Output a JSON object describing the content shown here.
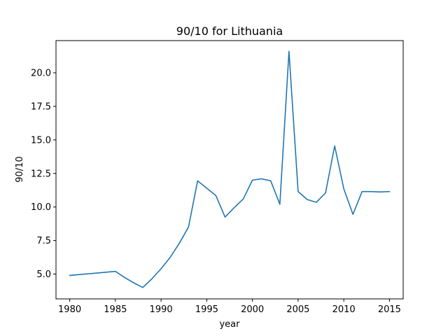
{
  "chart_data": {
    "type": "line",
    "title": "90/10 for Lithuania",
    "xlabel": "year",
    "ylabel": "90/10",
    "xlim": [
      1978.5,
      2016.5
    ],
    "ylim": [
      3.15,
      22.4
    ],
    "xticks": [
      1980,
      1985,
      1990,
      1995,
      2000,
      2005,
      2010,
      2015
    ],
    "xtick_labels": [
      "1980",
      "1985",
      "1990",
      "1995",
      "2000",
      "2005",
      "2010",
      "2015"
    ],
    "yticks": [
      5.0,
      7.5,
      10.0,
      12.5,
      15.0,
      17.5,
      20.0
    ],
    "ytick_labels": [
      "5.0",
      "7.5",
      "10.0",
      "12.5",
      "15.0",
      "17.5",
      "20.0"
    ],
    "grid": false,
    "series": [
      {
        "color": "#1f77b4",
        "x": [
          1980,
          1985,
          1986,
          1987,
          1988,
          1989,
          1990,
          1991,
          1992,
          1993,
          1994,
          1995,
          1996,
          1997,
          1998,
          1999,
          2000,
          2001,
          2002,
          2003,
          2004,
          2005,
          2006,
          2007,
          2008,
          2009,
          2010,
          2011,
          2012,
          2013,
          2014,
          2015
        ],
        "y": [
          4.9,
          5.2,
          4.75,
          4.35,
          4.0,
          4.65,
          5.4,
          6.25,
          7.3,
          8.5,
          11.95,
          11.4,
          10.85,
          9.25,
          9.95,
          10.6,
          12.0,
          12.1,
          11.95,
          10.2,
          21.6,
          11.15,
          10.55,
          10.35,
          11.05,
          14.55,
          11.35,
          9.45,
          11.15,
          11.15,
          11.12,
          11.15
        ]
      }
    ]
  }
}
